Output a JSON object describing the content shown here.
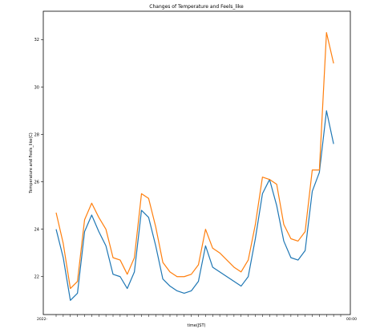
{
  "chart_data": {
    "type": "line",
    "title": "Changes of Temperature and Feels_like",
    "xlabel": "time(JST)",
    "ylabel": "Temperature and Feels_like(C)",
    "ylim": [
      20.4,
      33.2
    ],
    "yticks": [
      22,
      24,
      26,
      28,
      30,
      32
    ],
    "grid": false,
    "legend": "none",
    "x_first_label": "2022-",
    "x_last_label": "00:00",
    "x": [
      0,
      1,
      2,
      3,
      4,
      5,
      6,
      7,
      8,
      9,
      10,
      11,
      12,
      13,
      14,
      15,
      16,
      17,
      18,
      19,
      20,
      21,
      22,
      23,
      24,
      25,
      26,
      27,
      28,
      29,
      30,
      31,
      32,
      33,
      34,
      35,
      36,
      37,
      38,
      39,
      40
    ],
    "series": [
      {
        "color": "#1f77b4",
        "values": [
          24.0,
          22.8,
          21.0,
          21.3,
          23.9,
          24.6,
          23.9,
          23.3,
          22.1,
          22.0,
          21.5,
          22.2,
          24.8,
          24.5,
          23.3,
          21.9,
          21.6,
          21.4,
          21.3,
          21.4,
          21.8,
          23.3,
          22.4,
          22.2,
          22.0,
          21.8,
          21.6,
          22.0,
          23.6,
          25.5,
          26.1,
          25.0,
          23.5,
          22.8,
          22.7,
          23.1,
          25.6,
          26.4,
          29.0,
          27.6,
          null
        ]
      },
      {
        "color": "#ff7f0e",
        "values": [
          24.7,
          23.4,
          21.5,
          21.8,
          24.4,
          25.1,
          24.5,
          24.0,
          22.8,
          22.7,
          22.1,
          22.8,
          25.5,
          25.3,
          24.1,
          22.6,
          22.2,
          22.0,
          22.0,
          22.1,
          22.5,
          24.0,
          23.2,
          23.0,
          22.7,
          22.4,
          22.2,
          22.7,
          24.2,
          26.2,
          26.1,
          25.9,
          24.2,
          23.6,
          23.5,
          23.9,
          26.5,
          26.5,
          32.3,
          31.0,
          null
        ]
      }
    ]
  }
}
